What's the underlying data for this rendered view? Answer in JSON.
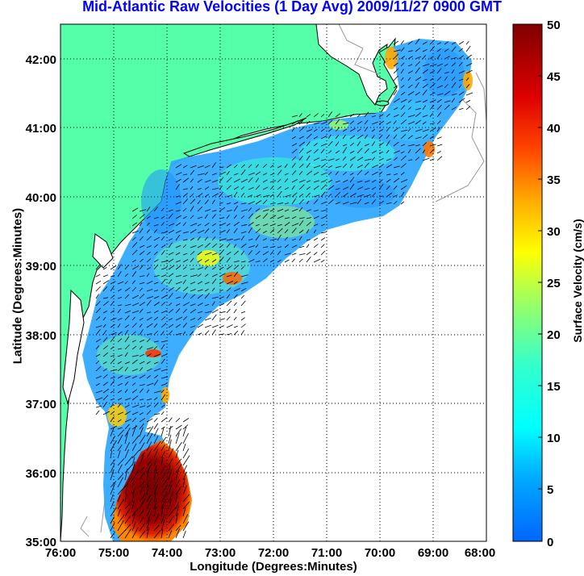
{
  "title": "Mid-Atlantic Raw Velocities (1 Day Avg) 2009/11/27 0900 GMT",
  "axes": {
    "x_label": "Longitude (Degrees:Minutes)",
    "y_label": "Latitude (Degrees:Minutes)",
    "x_ticks": [
      "76:00",
      "75:00",
      "74:00",
      "73:00",
      "72:00",
      "71:00",
      "70:00",
      "69:00",
      "68:00"
    ],
    "y_ticks": [
      "42:00",
      "41:00",
      "40:00",
      "39:00",
      "38:00",
      "37:00",
      "36:00",
      "35:00"
    ],
    "lon_range": [
      -76,
      -68
    ],
    "lat_range": [
      35,
      42.5
    ]
  },
  "colorbar": {
    "label": "Surface Velocity (cm/s)",
    "ticks": [
      "50",
      "45",
      "40",
      "35",
      "30",
      "25",
      "20",
      "15",
      "10",
      "5",
      "0"
    ],
    "range": [
      0,
      50
    ]
  },
  "colors": {
    "land": "#55ffaa",
    "title": "#0000ff",
    "low_velocity": "#0080ff",
    "high_velocity": "#800000"
  }
}
